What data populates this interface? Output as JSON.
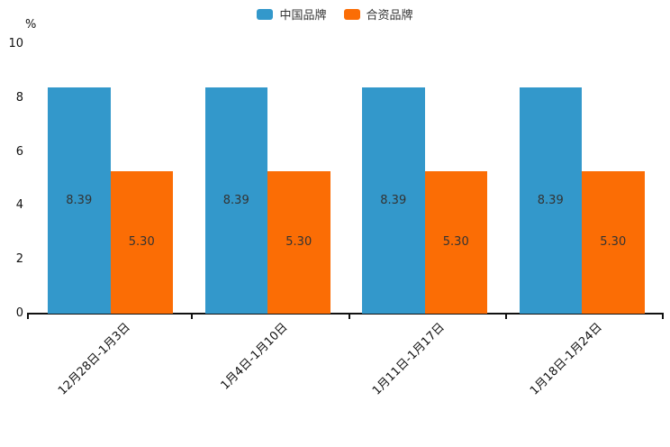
{
  "chart_data": {
    "type": "bar",
    "title": "",
    "unit": "%",
    "categories": [
      "12月28日-1月3日",
      "1月4日-1月10日",
      "1月11日-1月17日",
      "1月18日-1月24日"
    ],
    "series": [
      {
        "name": "中国品牌",
        "color": "#3398cb",
        "values": [
          8.39,
          8.39,
          8.39,
          8.39
        ]
      },
      {
        "name": "合资品牌",
        "color": "#fb6d05",
        "values": [
          5.3,
          5.3,
          5.3,
          5.3
        ]
      }
    ],
    "ylim": [
      0,
      10
    ],
    "yticks": [
      0,
      2,
      4,
      6,
      8,
      10
    ],
    "grid": false,
    "legend_position": "top-center",
    "value_labels_inside_bars": true,
    "value_label_decimals": 2,
    "value_label_color": "#333333",
    "axis_color": "#111111",
    "x_label_rotation_deg": -45,
    "background": "#ffffff"
  }
}
